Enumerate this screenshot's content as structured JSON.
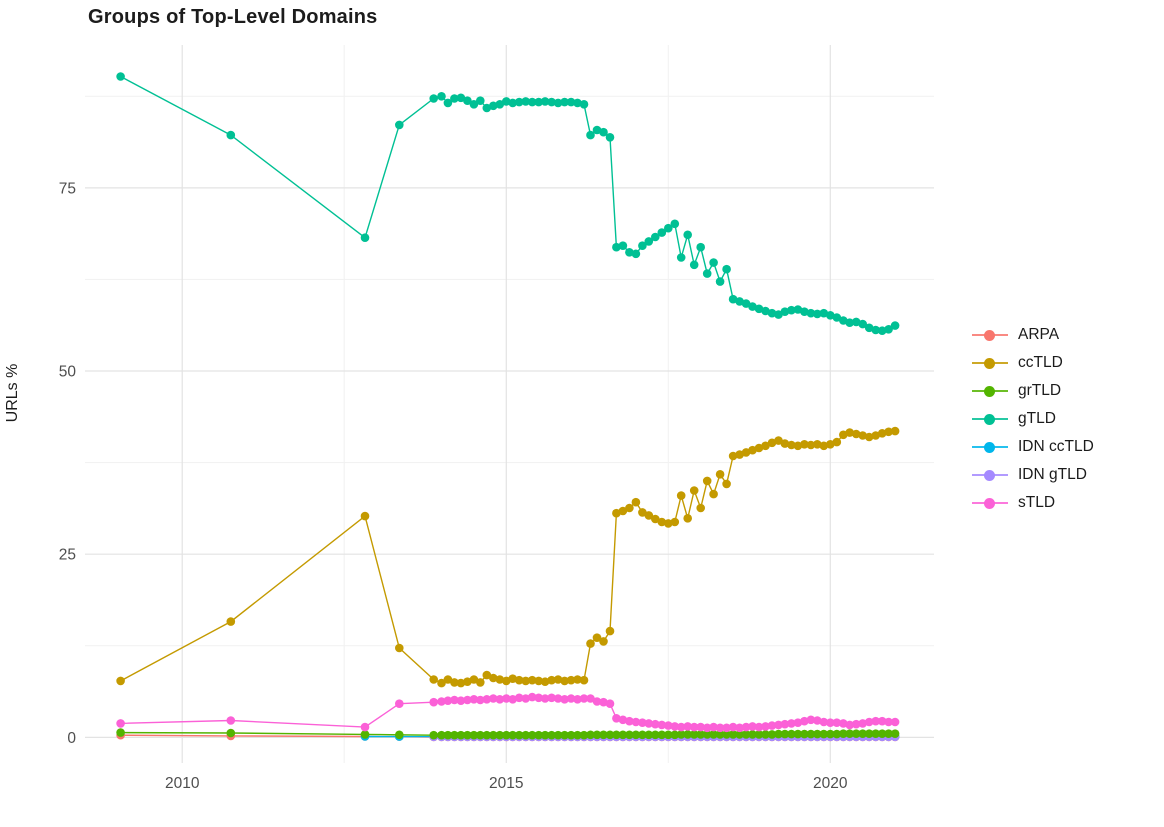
{
  "colors": {
    "grid_major": "#e3e3e3",
    "grid_minor": "#f1f1f1",
    "tick_label": "#4e4e4e",
    "title": "#1c1c1c"
  },
  "chart_data": {
    "type": "line",
    "title": "Groups of Top-Level Domains",
    "xlabel": "",
    "ylabel": "URLs %",
    "legend_position": "right",
    "grid": true,
    "x_axis": {
      "ticks": [
        2010,
        2015,
        2020
      ],
      "tick_labels": [
        "2010",
        "2015",
        "2020"
      ],
      "minor_ticks": [
        2012.5,
        2017.5
      ],
      "range": [
        2008.5,
        2021.6
      ]
    },
    "y_axis": {
      "ticks": [
        0,
        25,
        50,
        75
      ],
      "tick_labels": [
        "0",
        "25",
        "50",
        "75"
      ],
      "minor_ticks": [
        12.5,
        37.5,
        62.5,
        87.5
      ],
      "range": [
        -3.5,
        94.5
      ]
    },
    "x": [
      2009.05,
      2010.75,
      2012.82,
      2013.35,
      2013.88,
      2014.0,
      2014.1,
      2014.2,
      2014.3,
      2014.4,
      2014.5,
      2014.6,
      2014.7,
      2014.8,
      2014.9,
      2015.0,
      2015.1,
      2015.2,
      2015.3,
      2015.4,
      2015.5,
      2015.6,
      2015.7,
      2015.8,
      2015.9,
      2016.0,
      2016.1,
      2016.2,
      2016.3,
      2016.4,
      2016.5,
      2016.6,
      2016.7,
      2016.8,
      2016.9,
      2017.0,
      2017.1,
      2017.2,
      2017.3,
      2017.4,
      2017.5,
      2017.6,
      2017.7,
      2017.8,
      2017.9,
      2018.0,
      2018.1,
      2018.2,
      2018.3,
      2018.4,
      2018.5,
      2018.6,
      2018.7,
      2018.8,
      2018.9,
      2019.0,
      2019.1,
      2019.2,
      2019.3,
      2019.4,
      2019.5,
      2019.6,
      2019.7,
      2019.8,
      2019.9,
      2020.0,
      2020.1,
      2020.2,
      2020.3,
      2020.4,
      2020.5,
      2020.6,
      2020.7,
      2020.8,
      2020.9,
      2021.0
    ],
    "series": [
      {
        "name": "ARPA",
        "color": "#F8766D",
        "z": 1,
        "values": [
          0.3,
          0.2,
          0.12,
          0.1,
          0.05,
          0.05,
          0.05,
          0.05,
          0.05,
          0.05,
          0.05,
          0.05,
          0.05,
          0.05,
          0.05,
          0.05,
          0.05,
          0.05,
          0.05,
          0.05,
          0.05,
          0.05,
          0.05,
          0.05,
          0.05,
          0.05,
          0.05,
          0.05,
          0.05,
          0.05,
          0.05,
          0.05,
          0.05,
          0.05,
          0.05,
          0.05,
          0.05,
          0.05,
          0.05,
          0.05,
          0.05,
          0.05,
          0.05,
          0.05,
          0.05,
          0.05,
          0.05,
          0.05,
          0.05,
          0.05,
          0.05,
          0.05,
          0.05,
          0.05,
          0.05,
          0.05,
          0.05,
          0.05,
          0.05,
          0.05,
          0.05,
          0.05,
          0.05,
          0.05,
          0.05,
          0.05,
          0.05,
          0.05,
          0.05,
          0.05,
          0.05,
          0.05,
          0.05,
          0.05,
          0.05,
          0.05
        ]
      },
      {
        "name": "ccTLD",
        "color": "#C49A00",
        "z": 5,
        "values": [
          7.7,
          15.8,
          30.2,
          12.2,
          7.9,
          7.4,
          7.9,
          7.5,
          7.4,
          7.6,
          7.9,
          7.5,
          8.5,
          8.1,
          7.9,
          7.7,
          8.0,
          7.8,
          7.7,
          7.8,
          7.7,
          7.6,
          7.8,
          7.9,
          7.7,
          7.8,
          7.9,
          7.8,
          12.8,
          13.6,
          13.1,
          14.5,
          30.6,
          30.9,
          31.3,
          32.1,
          30.7,
          30.3,
          29.8,
          29.4,
          29.2,
          29.4,
          33.0,
          29.9,
          33.7,
          31.3,
          35.0,
          33.2,
          35.9,
          34.6,
          38.4,
          38.6,
          38.9,
          39.2,
          39.5,
          39.8,
          40.2,
          40.5,
          40.1,
          39.9,
          39.8,
          40.0,
          39.9,
          40.0,
          39.8,
          40.0,
          40.3,
          41.3,
          41.6,
          41.4,
          41.2,
          41.0,
          41.2,
          41.5,
          41.7,
          41.8
        ]
      },
      {
        "name": "grTLD",
        "color": "#53B400",
        "z": 4,
        "values": [
          0.65,
          0.6,
          0.4,
          0.35,
          0.3,
          0.3,
          0.3,
          0.3,
          0.3,
          0.3,
          0.3,
          0.3,
          0.3,
          0.3,
          0.3,
          0.3,
          0.3,
          0.3,
          0.3,
          0.3,
          0.3,
          0.3,
          0.3,
          0.3,
          0.3,
          0.3,
          0.3,
          0.3,
          0.35,
          0.35,
          0.35,
          0.35,
          0.35,
          0.35,
          0.35,
          0.35,
          0.35,
          0.35,
          0.35,
          0.35,
          0.35,
          0.35,
          0.4,
          0.4,
          0.4,
          0.4,
          0.4,
          0.4,
          0.4,
          0.4,
          0.4,
          0.4,
          0.4,
          0.4,
          0.4,
          0.4,
          0.4,
          0.45,
          0.45,
          0.45,
          0.45,
          0.45,
          0.45,
          0.45,
          0.45,
          0.45,
          0.45,
          0.5,
          0.5,
          0.5,
          0.5,
          0.5,
          0.5,
          0.5,
          0.5,
          0.5
        ]
      },
      {
        "name": "gTLD",
        "color": "#00C094",
        "z": 6,
        "values": [
          90.2,
          82.2,
          68.2,
          83.6,
          87.2,
          87.5,
          86.6,
          87.2,
          87.3,
          86.9,
          86.4,
          86.9,
          85.9,
          86.2,
          86.4,
          86.8,
          86.6,
          86.7,
          86.8,
          86.7,
          86.7,
          86.8,
          86.7,
          86.6,
          86.7,
          86.7,
          86.6,
          86.4,
          82.2,
          82.9,
          82.6,
          81.9,
          66.9,
          67.1,
          66.2,
          66.0,
          67.1,
          67.7,
          68.3,
          68.9,
          69.5,
          70.1,
          65.5,
          68.6,
          64.5,
          66.9,
          63.3,
          64.8,
          62.2,
          63.9,
          59.8,
          59.5,
          59.2,
          58.8,
          58.5,
          58.2,
          57.9,
          57.7,
          58.1,
          58.3,
          58.4,
          58.1,
          57.9,
          57.8,
          57.9,
          57.6,
          57.3,
          56.9,
          56.6,
          56.7,
          56.4,
          55.9,
          55.6,
          55.5,
          55.7,
          56.2
        ]
      },
      {
        "name": "IDN ccTLD",
        "color": "#00B6EB",
        "z": 2,
        "values": [
          null,
          null,
          0.12,
          0.1,
          0.1,
          0.1,
          0.1,
          0.1,
          0.1,
          0.1,
          0.1,
          0.1,
          0.1,
          0.1,
          0.1,
          0.1,
          0.1,
          0.1,
          0.1,
          0.1,
          0.1,
          0.1,
          0.1,
          0.1,
          0.1,
          0.1,
          0.1,
          0.1,
          0.1,
          0.1,
          0.1,
          0.1,
          0.1,
          0.1,
          0.1,
          0.1,
          0.1,
          0.1,
          0.1,
          0.1,
          0.1,
          0.1,
          0.1,
          0.1,
          0.1,
          0.1,
          0.1,
          0.1,
          0.1,
          0.1,
          0.1,
          0.1,
          0.1,
          0.1,
          0.1,
          0.1,
          0.1,
          0.1,
          0.1,
          0.1,
          0.1,
          0.1,
          0.1,
          0.1,
          0.1,
          0.1,
          0.1,
          0.1,
          0.1,
          0.1,
          0.1,
          0.1,
          0.1,
          0.1,
          0.1,
          0.1
        ]
      },
      {
        "name": "IDN gTLD",
        "color": "#A58AFF",
        "z": 3,
        "values": [
          null,
          null,
          null,
          null,
          0.07,
          0.07,
          0.07,
          0.07,
          0.07,
          0.07,
          0.07,
          0.07,
          0.07,
          0.07,
          0.07,
          0.07,
          0.07,
          0.07,
          0.07,
          0.07,
          0.07,
          0.07,
          0.07,
          0.07,
          0.07,
          0.07,
          0.07,
          0.07,
          0.07,
          0.07,
          0.07,
          0.07,
          0.07,
          0.07,
          0.07,
          0.07,
          0.07,
          0.07,
          0.07,
          0.07,
          0.07,
          0.07,
          0.07,
          0.07,
          0.07,
          0.07,
          0.07,
          0.07,
          0.07,
          0.07,
          0.07,
          0.07,
          0.07,
          0.07,
          0.07,
          0.07,
          0.07,
          0.07,
          0.07,
          0.07,
          0.07,
          0.07,
          0.07,
          0.07,
          0.07,
          0.07,
          0.07,
          0.07,
          0.07,
          0.07,
          0.07,
          0.07,
          0.07,
          0.07,
          0.07,
          0.07
        ]
      },
      {
        "name": "sTLD",
        "color": "#FB61D7",
        "z": 7,
        "values": [
          1.9,
          2.3,
          1.4,
          4.6,
          4.8,
          4.9,
          5.0,
          5.1,
          5.0,
          5.1,
          5.2,
          5.1,
          5.2,
          5.3,
          5.2,
          5.3,
          5.2,
          5.4,
          5.3,
          5.5,
          5.4,
          5.3,
          5.4,
          5.3,
          5.2,
          5.3,
          5.2,
          5.3,
          5.3,
          4.9,
          4.8,
          4.6,
          2.6,
          2.4,
          2.2,
          2.1,
          2.0,
          1.9,
          1.8,
          1.7,
          1.6,
          1.5,
          1.4,
          1.5,
          1.4,
          1.4,
          1.3,
          1.4,
          1.3,
          1.3,
          1.4,
          1.3,
          1.4,
          1.5,
          1.4,
          1.5,
          1.6,
          1.7,
          1.8,
          1.9,
          2.0,
          2.2,
          2.4,
          2.3,
          2.1,
          2.0,
          2.0,
          1.9,
          1.7,
          1.8,
          1.9,
          2.1,
          2.2,
          2.2,
          2.1,
          2.1
        ]
      }
    ]
  }
}
